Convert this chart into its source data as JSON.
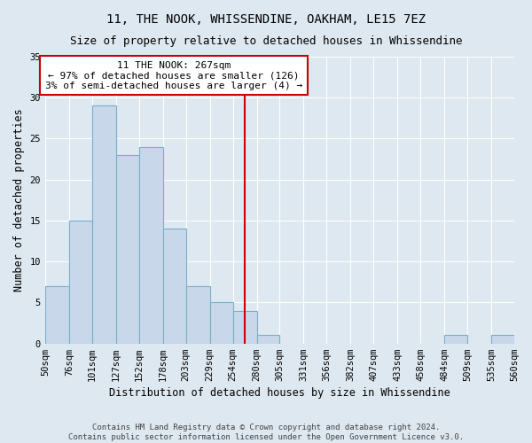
{
  "title": "11, THE NOOK, WHISSENDINE, OAKHAM, LE15 7EZ",
  "subtitle": "Size of property relative to detached houses in Whissendine",
  "xlabel": "Distribution of detached houses by size in Whissendine",
  "ylabel": "Number of detached properties",
  "bin_edges": [
    50,
    76,
    101,
    127,
    152,
    178,
    203,
    229,
    254,
    280,
    305,
    331,
    356,
    382,
    407,
    433,
    458,
    484,
    509,
    535,
    560
  ],
  "bar_heights": [
    7,
    15,
    29,
    23,
    24,
    14,
    7,
    5,
    4,
    1,
    0,
    0,
    0,
    0,
    0,
    0,
    0,
    1,
    0,
    1
  ],
  "bar_color": "#c8d8ea",
  "bar_edge_color": "#7aaec8",
  "property_size": 267,
  "vline_color": "#cc0000",
  "annotation_text": "11 THE NOOK: 267sqm\n← 97% of detached houses are smaller (126)\n3% of semi-detached houses are larger (4) →",
  "annotation_box_color": "white",
  "annotation_box_edge_color": "#cc0000",
  "ylim": [
    0,
    35
  ],
  "yticks": [
    0,
    5,
    10,
    15,
    20,
    25,
    30,
    35
  ],
  "background_color": "#dde8f0",
  "footer_line1": "Contains HM Land Registry data © Crown copyright and database right 2024.",
  "footer_line2": "Contains public sector information licensed under the Open Government Licence v3.0.",
  "title_fontsize": 10,
  "subtitle_fontsize": 9,
  "axis_label_fontsize": 8.5,
  "tick_fontsize": 7.5,
  "annotation_fontsize": 8,
  "footer_fontsize": 6.5
}
